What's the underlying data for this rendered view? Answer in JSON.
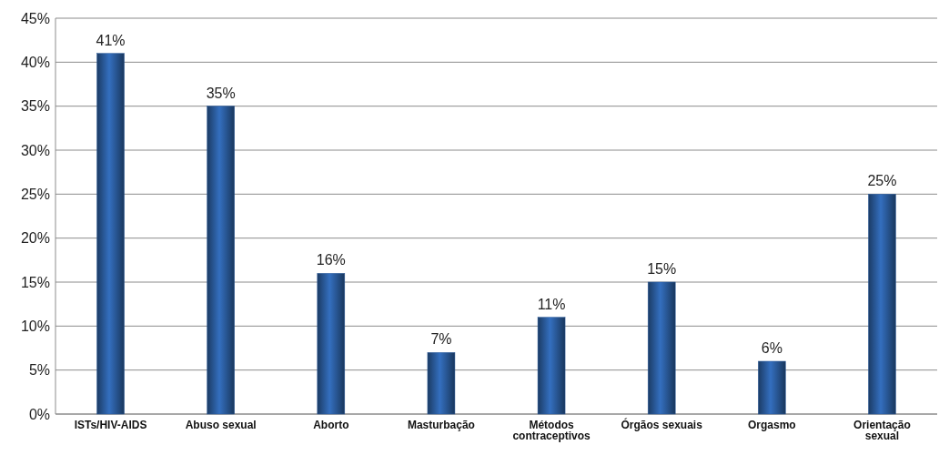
{
  "chart_data": {
    "type": "bar",
    "categories": [
      "ISTs/HIV-AIDS",
      "Abuso sexual",
      "Aborto",
      "Masturbação",
      "Métodos contraceptivos",
      "Órgãos sexuais",
      "Orgasmo",
      "Orientação sexual"
    ],
    "values": [
      41,
      35,
      16,
      7,
      11,
      15,
      6,
      25
    ],
    "value_labels": [
      "41%",
      "35%",
      "16%",
      "7%",
      "11%",
      "15%",
      "6%",
      "25%"
    ],
    "color": "#2a5a9a",
    "ylim": [
      0,
      45
    ],
    "yticks": [
      {
        "value": 0,
        "label": "0%"
      },
      {
        "value": 5,
        "label": "5%"
      },
      {
        "value": 10,
        "label": "10%"
      },
      {
        "value": 15,
        "label": "15%"
      },
      {
        "value": 20,
        "label": "20%"
      },
      {
        "value": 25,
        "label": "25%"
      },
      {
        "value": 30,
        "label": "30%"
      },
      {
        "value": 35,
        "label": "35%"
      },
      {
        "value": 40,
        "label": "40%"
      },
      {
        "value": 45,
        "label": "45%"
      }
    ],
    "grid": "y"
  }
}
